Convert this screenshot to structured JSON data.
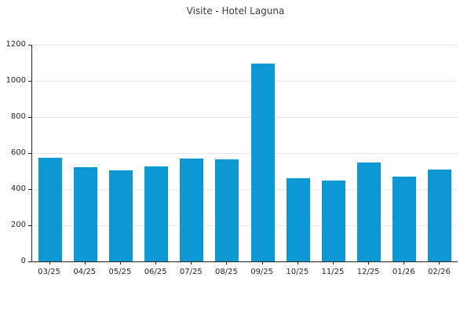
{
  "chart_data": {
    "type": "bar",
    "title": "Visite - Hotel Laguna",
    "categories": [
      "03/25",
      "04/25",
      "05/25",
      "06/25",
      "07/25",
      "08/25",
      "09/25",
      "10/25",
      "11/25",
      "12/25",
      "01/26",
      "02/26"
    ],
    "values": [
      575,
      520,
      505,
      525,
      570,
      565,
      1095,
      460,
      450,
      550,
      470,
      510
    ],
    "xlabel": "",
    "ylabel": "",
    "ylim": [
      0,
      1200
    ],
    "yticks": [
      0,
      200,
      400,
      600,
      800,
      1000,
      1200
    ],
    "grid": "horizontal",
    "legend": "none",
    "colors": {
      "bar": "#0d98d4",
      "grid": "#e8e8e8",
      "axis": "#262626",
      "text": "#262626",
      "title": "#3b3b3b",
      "background": "#ffffff"
    }
  }
}
